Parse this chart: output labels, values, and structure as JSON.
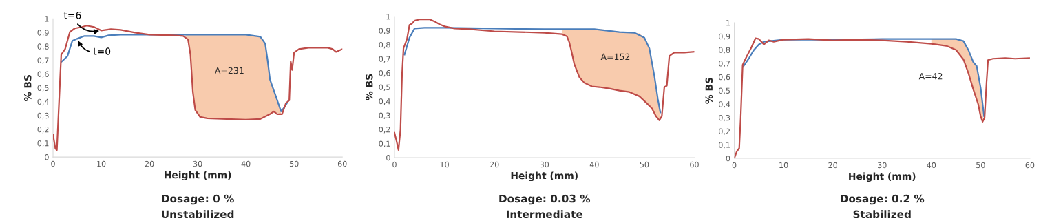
{
  "chart_data": [
    {
      "type": "line",
      "title": "Dosage: 0 %",
      "subtitle": "Unstabilized",
      "xlabel": "Height (mm)",
      "ylabel": "% BS",
      "xlim": [
        0,
        60
      ],
      "ylim": [
        0,
        1
      ],
      "xticks": [
        0,
        10,
        20,
        30,
        40,
        50,
        60
      ],
      "yticks": [
        0,
        {
          "value": 0.1,
          "label": "0,1"
        },
        {
          "value": 0.2,
          "label": "0,2"
        },
        {
          "value": 0.3,
          "label": "0,3"
        },
        {
          "value": 0.4,
          "label": "0,4"
        },
        {
          "value": 0.5,
          "label": "0,5"
        },
        {
          "value": 0.6,
          "label": "0,6"
        },
        {
          "value": 0.7,
          "label": "0,7"
        },
        {
          "value": 0.8,
          "label": "0,8"
        },
        {
          "value": 0.9,
          "label": "0,9"
        },
        1
      ],
      "grid": false,
      "annotations": [
        {
          "text": "t=6",
          "x": 10,
          "y": 0.915
        },
        {
          "text": "t=0",
          "x": 5,
          "y": 0.855
        },
        "A=231"
      ],
      "series": [
        {
          "type": "area",
          "color": "#f8cbad",
          "x": [
            27.5,
            28,
            28.5,
            29,
            29.5,
            30.5,
            32,
            36,
            40,
            43,
            44,
            44.5,
            45,
            46,
            47.3
          ],
          "values": [
            0.885,
            0.885,
            0.885,
            0.885,
            0.885,
            0.885,
            0.885,
            0.885,
            0.885,
            0.87,
            0.82,
            0.7,
            0.56,
            0.46,
            0.33
          ]
        },
        {
          "type": "line",
          "color": "#4a7ebb",
          "x": [
            1.8,
            3,
            4,
            5,
            6.5,
            8.5,
            10,
            11.5,
            14,
            20,
            30,
            40,
            43,
            44,
            44.5,
            45,
            46,
            47.3,
            48,
            48.7
          ],
          "values": [
            0.69,
            0.73,
            0.84,
            0.855,
            0.875,
            0.875,
            0.865,
            0.88,
            0.885,
            0.885,
            0.885,
            0.885,
            0.87,
            0.82,
            0.7,
            0.56,
            0.46,
            0.33,
            0.36,
            0.4
          ]
        },
        {
          "type": "line",
          "color": "#be4b48",
          "x": [
            0,
            0.5,
            0.8,
            1.5,
            1.7,
            2.5,
            3.5,
            4.5,
            6,
            7,
            8.5,
            10,
            12,
            14,
            17,
            20,
            25,
            27,
            28,
            28.5,
            29,
            29.5,
            30.5,
            32,
            36,
            40,
            43,
            45,
            45.8,
            46.5,
            47.5,
            48.3,
            49,
            49.3,
            49.6,
            50,
            51,
            53,
            57,
            58,
            58.7,
            59.3,
            60
          ],
          "values": [
            0.16,
            0.06,
            0.05,
            0.59,
            0.74,
            0.78,
            0.905,
            0.93,
            0.94,
            0.95,
            0.94,
            0.915,
            0.925,
            0.92,
            0.9,
            0.885,
            0.88,
            0.875,
            0.85,
            0.74,
            0.47,
            0.34,
            0.29,
            0.28,
            0.275,
            0.27,
            0.275,
            0.31,
            0.33,
            0.31,
            0.31,
            0.39,
            0.41,
            0.69,
            0.63,
            0.755,
            0.78,
            0.79,
            0.79,
            0.78,
            0.76,
            0.77,
            0.78
          ]
        }
      ]
    },
    {
      "type": "line",
      "title": "Dosage: 0.03 %",
      "subtitle": "Intermediate",
      "xlabel": "Height (mm)",
      "ylabel": "% BS",
      "xlim": [
        0,
        60
      ],
      "ylim": [
        0,
        1
      ],
      "xticks": [
        0,
        10,
        20,
        30,
        40,
        50,
        60
      ],
      "yticks": [
        0,
        {
          "value": 0.1,
          "label": "0,1"
        },
        {
          "value": 0.2,
          "label": "0,2"
        },
        {
          "value": 0.3,
          "label": "0,3"
        },
        {
          "value": 0.4,
          "label": "0,4"
        },
        {
          "value": 0.5,
          "label": "0,5"
        },
        {
          "value": 0.6,
          "label": "0,6"
        },
        {
          "value": 0.7,
          "label": "0,7"
        },
        {
          "value": 0.8,
          "label": "0,8"
        },
        {
          "value": 0.9,
          "label": "0,9"
        },
        1
      ],
      "grid": false,
      "annotations": [
        "A=152"
      ],
      "series": [
        {
          "type": "area",
          "color": "#f8cbad",
          "x": [
            33.5,
            34.5,
            35,
            35.5,
            36,
            37,
            38,
            39.5,
            41,
            43,
            45,
            47,
            49,
            50,
            50.5,
            51,
            51.5,
            52,
            52.3,
            52.7,
            53.2
          ],
          "values": [
            0.905,
            0.905,
            0.905,
            0.905,
            0.905,
            0.91,
            0.91,
            0.91,
            0.91,
            0.905,
            0.89,
            0.885,
            0.88,
            0.85,
            0.82,
            0.775,
            0.69,
            0.58,
            0.52,
            0.415,
            0.32
          ]
        },
        {
          "type": "line",
          "color": "#4a7ebb",
          "x": [
            2,
            3,
            4,
            6,
            10,
            20,
            30,
            40,
            45,
            48,
            50,
            51,
            52,
            52.7,
            53.2
          ],
          "values": [
            0.73,
            0.85,
            0.915,
            0.92,
            0.92,
            0.915,
            0.91,
            0.91,
            0.89,
            0.885,
            0.85,
            0.775,
            0.58,
            0.415,
            0.32
          ]
        },
        {
          "type": "line",
          "color": "#be4b48",
          "x": [
            0,
            0.4,
            0.8,
            1.2,
            1.5,
            1.8,
            2.5,
            3,
            3.5,
            4,
            5,
            7,
            8,
            9,
            10,
            12,
            15,
            20,
            25,
            30,
            33.5,
            34.5,
            35,
            35.5,
            36,
            37,
            38,
            39.5,
            41,
            43,
            45,
            47,
            49,
            50.5,
            51.5,
            52.3,
            53,
            53.5,
            54,
            54.5,
            55,
            56,
            58,
            60
          ],
          "values": [
            0.176,
            0.12,
            0.055,
            0.2,
            0.58,
            0.775,
            0.84,
            0.94,
            0.95,
            0.97,
            0.98,
            0.98,
            0.965,
            0.945,
            0.93,
            0.915,
            0.91,
            0.895,
            0.89,
            0.885,
            0.875,
            0.86,
            0.815,
            0.74,
            0.66,
            0.57,
            0.53,
            0.505,
            0.5,
            0.49,
            0.475,
            0.465,
            0.435,
            0.385,
            0.35,
            0.295,
            0.265,
            0.295,
            0.5,
            0.51,
            0.72,
            0.745,
            0.745,
            0.75
          ]
        }
      ]
    },
    {
      "type": "line",
      "title": "Dosage: 0.2 %",
      "subtitle": "Stabilized",
      "xlabel": "Height (mm)",
      "ylabel": "% BS",
      "xlim": [
        0,
        60
      ],
      "ylim": [
        0,
        1
      ],
      "xticks": [
        0,
        10,
        20,
        30,
        40,
        50,
        60
      ],
      "yticks": [
        0,
        {
          "value": 0.1,
          "label": "0,1"
        },
        {
          "value": 0.2,
          "label": "0,2"
        },
        {
          "value": 0.3,
          "label": "0,3"
        },
        {
          "value": 0.4,
          "label": "0,4"
        },
        {
          "value": 0.5,
          "label": "0,5"
        },
        {
          "value": 0.6,
          "label": "0,6"
        },
        {
          "value": 0.7,
          "label": "0,7"
        },
        {
          "value": 0.8,
          "label": "0,8"
        },
        {
          "value": 0.9,
          "label": "0,9"
        },
        1
      ],
      "grid": false,
      "annotations": [
        "A=42"
      ],
      "series": [
        {
          "type": "area",
          "color": "#f8cbad",
          "x": [
            40,
            43,
            45,
            46.5,
            47.5,
            48.5,
            49.2,
            50,
            50.5
          ],
          "values": [
            0.88,
            0.88,
            0.88,
            0.865,
            0.8,
            0.71,
            0.68,
            0.52,
            0.36
          ]
        },
        {
          "type": "line",
          "color": "#4a7ebb",
          "x": [
            1.8,
            3,
            4,
            5,
            6,
            10,
            20,
            30,
            40,
            45,
            46.5,
            47.5,
            48.5,
            49.2,
            50,
            50.7
          ],
          "values": [
            0.675,
            0.74,
            0.8,
            0.84,
            0.86,
            0.875,
            0.875,
            0.88,
            0.88,
            0.88,
            0.865,
            0.8,
            0.71,
            0.68,
            0.52,
            0.31
          ]
        },
        {
          "type": "line",
          "color": "#be4b48",
          "x": [
            0,
            0.5,
            1,
            1.3,
            1.7,
            2.5,
            3.5,
            4.3,
            5,
            6,
            7,
            8,
            10,
            15,
            20,
            25,
            30,
            35,
            40,
            43,
            45,
            46.5,
            47.5,
            48.5,
            49.5,
            50,
            50.4,
            50.8,
            51.2,
            51.5,
            52.5,
            55,
            57,
            60
          ],
          "values": [
            0.0,
            0.05,
            0.075,
            0.3,
            0.69,
            0.75,
            0.82,
            0.885,
            0.88,
            0.84,
            0.87,
            0.86,
            0.875,
            0.88,
            0.87,
            0.875,
            0.87,
            0.86,
            0.845,
            0.83,
            0.8,
            0.73,
            0.63,
            0.51,
            0.4,
            0.31,
            0.27,
            0.3,
            0.56,
            0.725,
            0.735,
            0.74,
            0.735,
            0.74
          ]
        }
      ]
    }
  ]
}
